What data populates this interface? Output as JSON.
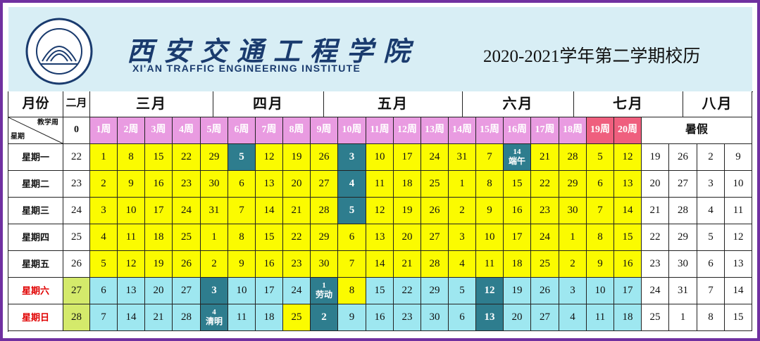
{
  "header": {
    "school_cn": "西安交通工程学院",
    "school_en": "XI'AN TRAFFIC ENGINEERING INSTITUTE",
    "title": "2020-2021学年第二学期校历"
  },
  "table": {
    "month_label": "月份",
    "corner_top": "教学周",
    "corner_bottom": "星期",
    "months": [
      "二月",
      "三月",
      "四月",
      "五月",
      "六月",
      "七月",
      "八月"
    ],
    "weeks": [
      "0",
      "1周",
      "2周",
      "3周",
      "4周",
      "5周",
      "6周",
      "7周",
      "8周",
      "9周",
      "10周",
      "11周",
      "12周",
      "13周",
      "14周",
      "15周",
      "16周",
      "17周",
      "18周",
      "19周",
      "20周"
    ],
    "summer": "暑假",
    "rows": [
      {
        "day": "星期一",
        "cells": [
          "22",
          "1",
          "8",
          "15",
          "22",
          "29",
          "5",
          "12",
          "19",
          "26",
          "3",
          "10",
          "17",
          "24",
          "31",
          "7",
          {
            "day": "14",
            "note": "端午"
          },
          "21",
          "28",
          "5",
          "12",
          "19",
          "26",
          "2",
          "9"
        ]
      },
      {
        "day": "星期二",
        "cells": [
          "23",
          "2",
          "9",
          "16",
          "23",
          "30",
          "6",
          "13",
          "20",
          "27",
          "4",
          "11",
          "18",
          "25",
          "1",
          "8",
          "15",
          "22",
          "29",
          "6",
          "13",
          "20",
          "27",
          "3",
          "10"
        ]
      },
      {
        "day": "星期三",
        "cells": [
          "24",
          "3",
          "10",
          "17",
          "24",
          "31",
          "7",
          "14",
          "21",
          "28",
          "5",
          "12",
          "19",
          "26",
          "2",
          "9",
          "16",
          "23",
          "30",
          "7",
          "14",
          "21",
          "28",
          "4",
          "11"
        ]
      },
      {
        "day": "星期四",
        "cells": [
          "25",
          "4",
          "11",
          "18",
          "25",
          "1",
          "8",
          "15",
          "22",
          "29",
          "6",
          "13",
          "20",
          "27",
          "3",
          "10",
          "17",
          "24",
          "1",
          "8",
          "15",
          "22",
          "29",
          "5",
          "12"
        ]
      },
      {
        "day": "星期五",
        "cells": [
          "26",
          "5",
          "12",
          "19",
          "26",
          "2",
          "9",
          "16",
          "23",
          "30",
          "7",
          "14",
          "21",
          "28",
          "4",
          "11",
          "18",
          "25",
          "2",
          "9",
          "16",
          "23",
          "30",
          "6",
          "13"
        ]
      },
      {
        "day": "星期六",
        "cells": [
          "27",
          "6",
          "13",
          "20",
          "27",
          "3",
          "10",
          "17",
          "24",
          {
            "day": "1",
            "note": "劳动"
          },
          "8",
          "15",
          "22",
          "29",
          "5",
          "12",
          "19",
          "26",
          "3",
          "10",
          "17",
          "24",
          "31",
          "7",
          "14"
        ]
      },
      {
        "day": "星期日",
        "cells": [
          "28",
          "7",
          "14",
          "21",
          "28",
          {
            "day": "4",
            "note": "清明"
          },
          "11",
          "18",
          "25",
          "2",
          "9",
          "16",
          "23",
          "30",
          "6",
          "13",
          "20",
          "27",
          "4",
          "11",
          "18",
          "25",
          "1",
          "8",
          "15"
        ]
      }
    ]
  }
}
